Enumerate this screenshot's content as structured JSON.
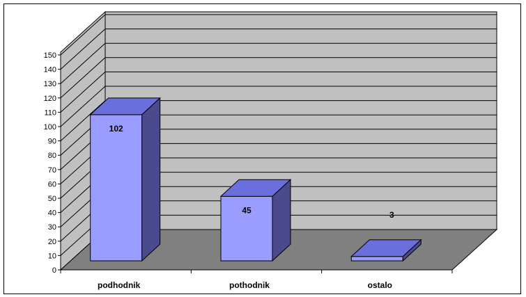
{
  "chart_data": {
    "type": "bar",
    "categories": [
      "podhodnik",
      "pothodnik",
      "ostalo"
    ],
    "values": [
      102,
      45,
      3
    ],
    "data_labels": [
      "102",
      "45",
      "3"
    ],
    "title": "",
    "xlabel": "",
    "ylabel": "",
    "ylim": [
      0,
      150
    ],
    "y_ticks": [
      "0",
      "10",
      "20",
      "30",
      "40",
      "50",
      "60",
      "70",
      "80",
      "90",
      "100",
      "110",
      "120",
      "130",
      "140",
      "150"
    ],
    "grid": true,
    "legend": "none",
    "three_d": true,
    "colors": {
      "bar_front": "#9a9cff",
      "bar_top": "#6b6fdc",
      "bar_side": "#4a4a8c",
      "bar_outline": "#000000",
      "wall_back": "#c0c0c0",
      "wall_side": "#c0c0c0",
      "floor": "#808080",
      "gridline": "#000000"
    }
  }
}
